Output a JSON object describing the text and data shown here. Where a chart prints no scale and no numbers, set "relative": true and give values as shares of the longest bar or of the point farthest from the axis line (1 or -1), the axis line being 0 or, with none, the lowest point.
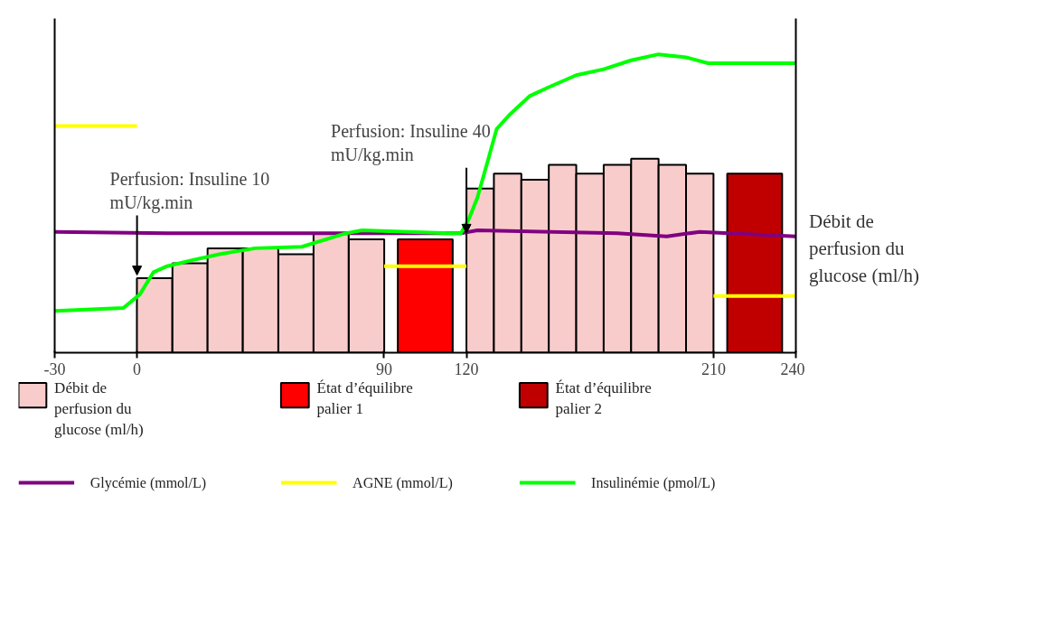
{
  "chart_data": {
    "type": "bar",
    "relative": true,
    "x": [
      6.4,
      19.3,
      32.1,
      45,
      57.9,
      70.7,
      83.6,
      105,
      125,
      135,
      145,
      155,
      165,
      175,
      185,
      195,
      205,
      225
    ],
    "xlim": [
      -30,
      240
    ],
    "xticks": [
      -30,
      0,
      90,
      120,
      210,
      240
    ],
    "series": [
      {
        "name": "Débit de perfusion du glucose (ml/h)",
        "color": "#f9cccc",
        "values": [
          0.25,
          0.3,
          0.35,
          0.35,
          0.33,
          0.4,
          0.38,
          null,
          0.55,
          0.6,
          0.58,
          0.63,
          0.6,
          0.63,
          0.65,
          0.63,
          0.6,
          null
        ]
      },
      {
        "name": "État d’équilibre palier 1",
        "color": "#ff0000",
        "values": [
          null,
          null,
          null,
          null,
          null,
          null,
          null,
          0.38,
          null,
          null,
          null,
          null,
          null,
          null,
          null,
          null,
          null,
          null
        ]
      },
      {
        "name": "État d’équilibre palier 2",
        "color": "#c00000",
        "values": [
          null,
          null,
          null,
          null,
          null,
          null,
          null,
          null,
          null,
          null,
          null,
          null,
          null,
          null,
          null,
          null,
          null,
          0.6
        ]
      },
      {
        "name": "Glycémie (mmol/L)",
        "type": "line",
        "color": "#800080",
        "x": [
          -30,
          11,
          76,
          118,
          124,
          175,
          193,
          205,
          240
        ],
        "values": [
          0.405,
          0.4,
          0.4,
          0.4,
          0.41,
          0.4,
          0.39,
          0.405,
          0.39
        ]
      },
      {
        "name": "AGNE (mmol/L)",
        "type": "line",
        "color": "#ffff00",
        "x": [
          -30,
          0,
          null,
          90,
          120,
          null,
          210,
          240
        ],
        "values": [
          0.76,
          0.76,
          null,
          0.29,
          0.29,
          null,
          0.19,
          0.19
        ]
      },
      {
        "name": "Insulinémie (pmol/L)",
        "type": "line",
        "color": "#00ff00",
        "x": [
          -30,
          -5,
          1,
          6,
          11,
          20,
          30,
          43,
          60,
          76,
          82,
          114,
          118,
          121,
          124,
          128,
          131,
          136,
          143,
          150,
          160,
          170,
          180,
          190,
          200,
          208,
          240
        ],
        "values": [
          0.14,
          0.15,
          0.195,
          0.27,
          0.29,
          0.31,
          0.33,
          0.35,
          0.355,
          0.4,
          0.41,
          0.4,
          0.4,
          0.45,
          0.52,
          0.65,
          0.75,
          0.8,
          0.86,
          0.89,
          0.93,
          0.95,
          0.98,
          1.0,
          0.99,
          0.97,
          0.97
        ]
      }
    ],
    "annotations": [
      "Débit de perfusion du glucose (ml/h)",
      {
        "text": "Perfusion: Insuline 10 mU/kg.min",
        "x": 0,
        "y": 0.26
      },
      {
        "text": "Perfusion: Insuline 40 mU/kg.min",
        "x": 120,
        "y": 0.4
      }
    ],
    "legend": "bottom"
  }
}
